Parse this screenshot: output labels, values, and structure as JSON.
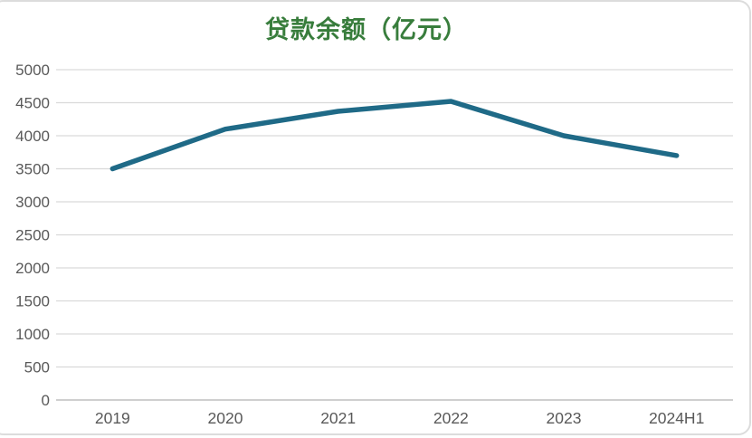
{
  "page": {
    "background": "#ffffff",
    "card_border_color": "#dcdcdc"
  },
  "chart_data": {
    "type": "line",
    "title": "贷款余额（亿元）",
    "title_color": "#387d3c",
    "categories": [
      "2019",
      "2020",
      "2021",
      "2022",
      "2023",
      "2024H1"
    ],
    "series": [
      {
        "name": "贷款余额（亿元）",
        "values": [
          3500,
          4100,
          4370,
          4520,
          4000,
          3700
        ],
        "color": "#1f6a87",
        "stroke_width": 5.5
      }
    ],
    "xlabel": "",
    "ylabel": "",
    "ylim": [
      0,
      5000
    ],
    "ytick_step": 500,
    "grid": true,
    "legend": "none",
    "gridline_color": "#d9d9d9",
    "axis_line_color": "#bfbfbf",
    "tick_label_color": "#595959",
    "tick_font_size": 17
  }
}
